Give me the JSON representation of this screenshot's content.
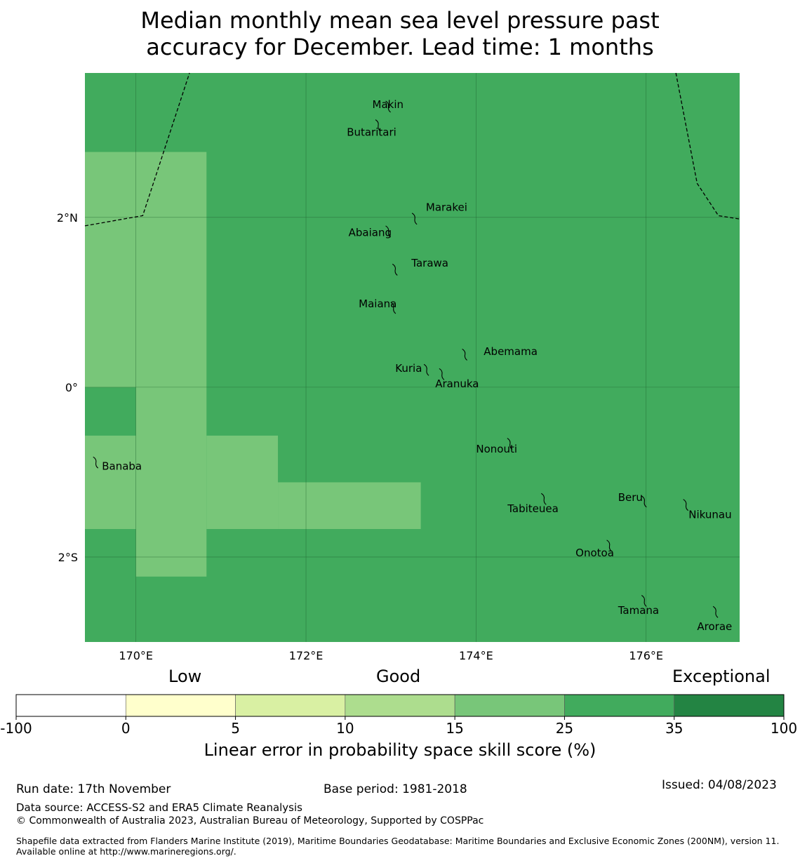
{
  "title": {
    "line1": "Median monthly mean sea level pressure past",
    "line2": "accuracy for December. Lead time: 1 months"
  },
  "map": {
    "lon_range": [
      169.4,
      177.1
    ],
    "lat_range": [
      -3.0,
      3.7
    ],
    "background_color": "#41ab5d",
    "highlight_color": "#78c679",
    "lon_ticks": [
      {
        "value": 170,
        "label": "170°E"
      },
      {
        "value": 172,
        "label": "172°E"
      },
      {
        "value": 174,
        "label": "174°E"
      },
      {
        "value": 176,
        "label": "176°E"
      }
    ],
    "lat_ticks": [
      {
        "value": 2,
        "label": "2°N"
      },
      {
        "value": 0,
        "label": "0°"
      },
      {
        "value": -2,
        "label": "2°S"
      }
    ],
    "skill_regions_15_25": [
      {
        "lon": [
          169.4,
          170.83
        ],
        "lat": [
          0.0,
          2.77
        ]
      },
      {
        "lon": [
          170.0,
          170.83
        ],
        "lat": [
          -2.23,
          0.0
        ]
      },
      {
        "lon": [
          169.4,
          170.0
        ],
        "lat": [
          -1.67,
          -0.57
        ]
      },
      {
        "lon": [
          170.83,
          171.67
        ],
        "lat": [
          -1.67,
          -0.57
        ]
      },
      {
        "lon": [
          171.67,
          173.35
        ],
        "lat": [
          -1.67,
          -1.12
        ]
      }
    ],
    "islands": [
      {
        "name": "Makin",
        "lon": 172.97,
        "lat": 3.32,
        "label_lon": 172.78,
        "label_lat": 3.33
      },
      {
        "name": "Butaritari",
        "lon": 172.85,
        "lat": 3.1,
        "label_lon": 172.48,
        "label_lat": 3.0
      },
      {
        "name": "Marakei",
        "lon": 173.28,
        "lat": 2.0,
        "label_lon": 173.41,
        "label_lat": 2.12
      },
      {
        "name": "Abaiang",
        "lon": 172.97,
        "lat": 1.85,
        "label_lon": 172.5,
        "label_lat": 1.82
      },
      {
        "name": "Tarawa",
        "lon": 173.05,
        "lat": 1.4,
        "label_lon": 173.24,
        "label_lat": 1.46
      },
      {
        "name": "Maiana",
        "lon": 173.03,
        "lat": 0.95,
        "label_lon": 172.62,
        "label_lat": 0.98
      },
      {
        "name": "Abemama",
        "lon": 173.87,
        "lat": 0.4,
        "label_lon": 174.09,
        "label_lat": 0.42
      },
      {
        "name": "Kuria",
        "lon": 173.42,
        "lat": 0.22,
        "label_lon": 173.05,
        "label_lat": 0.22
      },
      {
        "name": "Aranuka",
        "lon": 173.6,
        "lat": 0.17,
        "label_lon": 173.52,
        "label_lat": 0.04
      },
      {
        "name": "Nonouti",
        "lon": 174.4,
        "lat": -0.65,
        "label_lon": 174.0,
        "label_lat": -0.73
      },
      {
        "name": "Banaba",
        "lon": 169.53,
        "lat": -0.87,
        "label_lon": 169.6,
        "label_lat": -0.93
      },
      {
        "name": "Tabiteuea",
        "lon": 174.8,
        "lat": -1.3,
        "label_lon": 174.37,
        "label_lat": -1.43
      },
      {
        "name": "Beru",
        "lon": 175.98,
        "lat": -1.33,
        "label_lon": 175.67,
        "label_lat": -1.3
      },
      {
        "name": "Nikunau",
        "lon": 176.47,
        "lat": -1.37,
        "label_lon": 176.5,
        "label_lat": -1.5
      },
      {
        "name": "Onotoa",
        "lon": 175.57,
        "lat": -1.85,
        "label_lon": 175.17,
        "label_lat": -1.95
      },
      {
        "name": "Tamana",
        "lon": 175.98,
        "lat": -2.5,
        "label_lon": 175.67,
        "label_lat": -2.63
      },
      {
        "name": "Arorae",
        "lon": 176.82,
        "lat": -2.63,
        "label_lon": 176.6,
        "label_lat": -2.82
      }
    ],
    "eez_boundaries": [
      [
        [
          169.4,
          1.9
        ],
        [
          170.08,
          2.02
        ],
        [
          170.63,
          3.7
        ]
      ],
      [
        [
          176.35,
          3.7
        ],
        [
          176.6,
          2.4
        ],
        [
          176.85,
          2.02
        ],
        [
          177.1,
          1.98
        ]
      ]
    ]
  },
  "colorbar": {
    "category_labels": {
      "low": "Low",
      "good": "Good",
      "exceptional": "Exceptional"
    },
    "bins": [
      {
        "from": -100,
        "to": 0,
        "color": "#ffffff"
      },
      {
        "from": 0,
        "to": 5,
        "color": "#ffffcc"
      },
      {
        "from": 5,
        "to": 10,
        "color": "#d9f0a3"
      },
      {
        "from": 10,
        "to": 15,
        "color": "#addd8e"
      },
      {
        "from": 15,
        "to": 25,
        "color": "#78c679"
      },
      {
        "from": 25,
        "to": 35,
        "color": "#41ab5d"
      },
      {
        "from": 35,
        "to": 100,
        "color": "#238443"
      }
    ],
    "tick_labels": [
      "-100",
      "0",
      "5",
      "10",
      "15",
      "25",
      "35",
      "100"
    ],
    "label": "Linear error in probability space skill score (%)"
  },
  "footer": {
    "run_date": "Run date: 17th November",
    "base_period": "Base period: 1981-2018",
    "issued": "Issued: 04/08/2023",
    "data_source": "Data source: ACCESS-S2 and ERA5 Climate Reanalysis",
    "copyright": "© Commonwealth of Australia 2023, Australian Bureau of Meteorology, Supported by COSPPac",
    "shapefile": "Shapefile data extracted from Flanders Marine Institute (2019), Maritime Boundaries Geodatabase: Maritime Boundaries and Exclusive Economic Zones (200NM), version 11. Available online at http://www.marineregions.org/."
  }
}
